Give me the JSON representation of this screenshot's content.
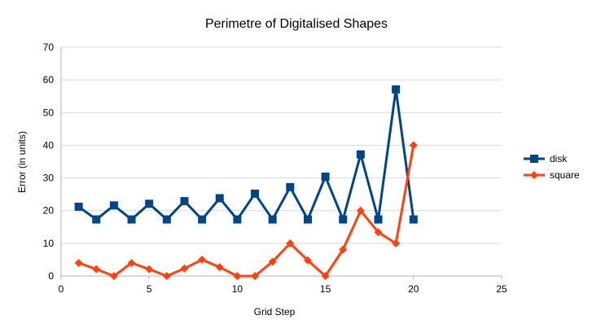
{
  "chart_data": {
    "type": "line",
    "title": "Perimetre of Digitalised Shapes",
    "xlabel": "Grid Step",
    "ylabel": "Error (in units)",
    "xlim": [
      0,
      25
    ],
    "ylim": [
      0,
      70
    ],
    "xticks": [
      "0",
      "5",
      "10",
      "15",
      "20",
      "25"
    ],
    "yticks": [
      "0",
      "10",
      "20",
      "30",
      "40",
      "50",
      "60",
      "70"
    ],
    "grid": true,
    "legend_position": "right",
    "x": [
      1,
      2,
      3,
      4,
      5,
      6,
      7,
      8,
      9,
      10,
      11,
      12,
      13,
      14,
      15,
      16,
      17,
      18,
      19,
      20
    ],
    "series": [
      {
        "name": "disk",
        "color": "#004586",
        "marker": "square",
        "values": [
          21.2,
          17.3,
          21.6,
          17.3,
          22.1,
          17.3,
          22.9,
          17.3,
          23.8,
          17.3,
          25.2,
          17.3,
          27.2,
          17.3,
          30.4,
          17.3,
          37.2,
          17.3,
          57.1,
          17.3
        ]
      },
      {
        "name": "square",
        "color": "#ff420e",
        "marker": "diamond",
        "values": [
          4.0,
          2.1,
          0.0,
          4.0,
          2.1,
          0.0,
          2.3,
          5.0,
          2.7,
          0.0,
          0.0,
          4.4,
          10.0,
          4.8,
          0.0,
          8.1,
          20.0,
          13.4,
          10.0,
          40.0
        ]
      }
    ]
  }
}
